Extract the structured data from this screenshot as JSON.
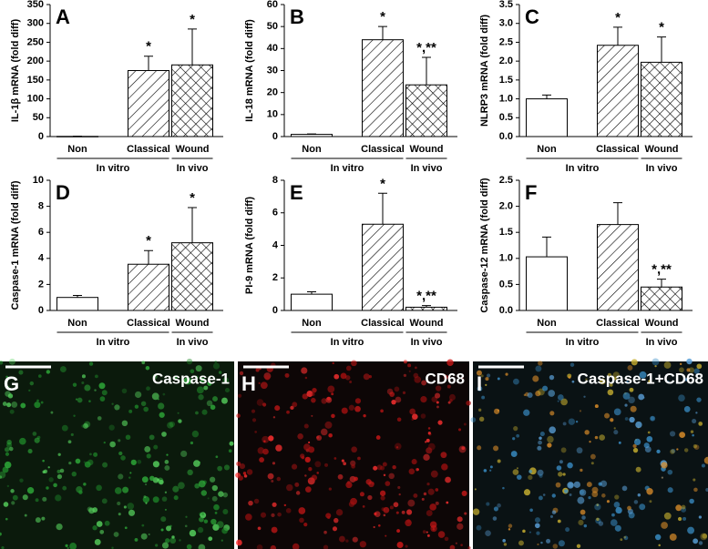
{
  "chart_data": [
    {
      "type": "bar",
      "panel": "A",
      "ylabel": "IL-1β mRNA (fold diff)",
      "categories": [
        "Non",
        "Classical",
        "Wound"
      ],
      "values": [
        0.5,
        175,
        190
      ],
      "errors": [
        0.5,
        38,
        95
      ],
      "annotations": [
        null,
        "*",
        "*"
      ],
      "patterns": [
        "none",
        "diagonal",
        "crosshatch"
      ],
      "groups": [
        "In vitro",
        "In vivo"
      ],
      "ylim": [
        0,
        350
      ],
      "yticks": [
        0,
        50,
        100,
        150,
        200,
        250,
        300,
        350
      ]
    },
    {
      "type": "bar",
      "panel": "B",
      "ylabel": "IL-18 mRNA (fold diff)",
      "categories": [
        "Non",
        "Classical",
        "Wound"
      ],
      "values": [
        1,
        44,
        23.5
      ],
      "errors": [
        0.2,
        6,
        12.5
      ],
      "annotations": [
        null,
        "*",
        "*,**"
      ],
      "patterns": [
        "none",
        "diagonal",
        "crosshatch"
      ],
      "groups": [
        "In vitro",
        "In vivo"
      ],
      "ylim": [
        0,
        60
      ],
      "yticks": [
        0,
        10,
        20,
        30,
        40,
        50,
        60
      ]
    },
    {
      "type": "bar",
      "panel": "C",
      "ylabel": "NLRP3 mRNA (fold diff)",
      "categories": [
        "Non",
        "Classical",
        "Wound"
      ],
      "values": [
        1.0,
        2.42,
        1.97
      ],
      "errors": [
        0.1,
        0.48,
        0.67
      ],
      "annotations": [
        null,
        "*",
        "*"
      ],
      "patterns": [
        "none",
        "diagonal",
        "crosshatch"
      ],
      "groups": [
        "In vitro",
        "In vivo"
      ],
      "ylim": [
        0,
        3.5
      ],
      "yticks": [
        {
          "value": 0,
          "label": "0.0"
        },
        0.5,
        {
          "value": 1,
          "label": "1.0"
        },
        1.5,
        {
          "value": 2,
          "label": "2.0"
        },
        2.5,
        {
          "value": 3,
          "label": "3.0"
        },
        3.5
      ]
    },
    {
      "type": "bar",
      "panel": "D",
      "ylabel": "Caspase-1 mRNA (fold diff)",
      "categories": [
        "Non",
        "Classical",
        "Wound"
      ],
      "values": [
        1.0,
        3.55,
        5.2
      ],
      "errors": [
        0.15,
        1.05,
        2.7
      ],
      "annotations": [
        null,
        "*",
        "*"
      ],
      "patterns": [
        "none",
        "diagonal",
        "crosshatch"
      ],
      "groups": [
        "In vitro",
        "In vivo"
      ],
      "ylim": [
        0,
        10
      ],
      "yticks": [
        0,
        2,
        4,
        6,
        8,
        10
      ]
    },
    {
      "type": "bar",
      "panel": "E",
      "ylabel": "PI-9 mRNA (fold diff)",
      "categories": [
        "Non",
        "Classical",
        "Wound"
      ],
      "values": [
        1.0,
        5.3,
        0.2
      ],
      "errors": [
        0.15,
        1.9,
        0.1
      ],
      "annotations": [
        null,
        "*",
        "*,**"
      ],
      "patterns": [
        "none",
        "diagonal",
        "crosshatch"
      ],
      "groups": [
        "In vitro",
        "In vivo"
      ],
      "ylim": [
        0,
        8
      ],
      "yticks": [
        0,
        2,
        4,
        6,
        8
      ]
    },
    {
      "type": "bar",
      "panel": "F",
      "ylabel": "Caspase-12 mRNA (fold diff)",
      "categories": [
        "Non",
        "Classical",
        "Wound"
      ],
      "values": [
        1.03,
        1.65,
        0.45
      ],
      "errors": [
        0.38,
        0.42,
        0.15
      ],
      "annotations": [
        null,
        null,
        "*,**"
      ],
      "patterns": [
        "none",
        "diagonal",
        "crosshatch"
      ],
      "groups": [
        "In vitro",
        "In vivo"
      ],
      "ylim": [
        0,
        2.5
      ],
      "yticks": [
        {
          "value": 0,
          "label": "0.0"
        },
        0.5,
        {
          "value": 1,
          "label": "1.0"
        },
        1.5,
        {
          "value": 2,
          "label": "2.0"
        },
        2.5
      ]
    }
  ],
  "micrographs": [
    {
      "panel": "G",
      "label": "Caspase-1"
    },
    {
      "panel": "H",
      "label": "CD68"
    },
    {
      "panel": "I",
      "label": "Caspase-1+CD68"
    }
  ]
}
